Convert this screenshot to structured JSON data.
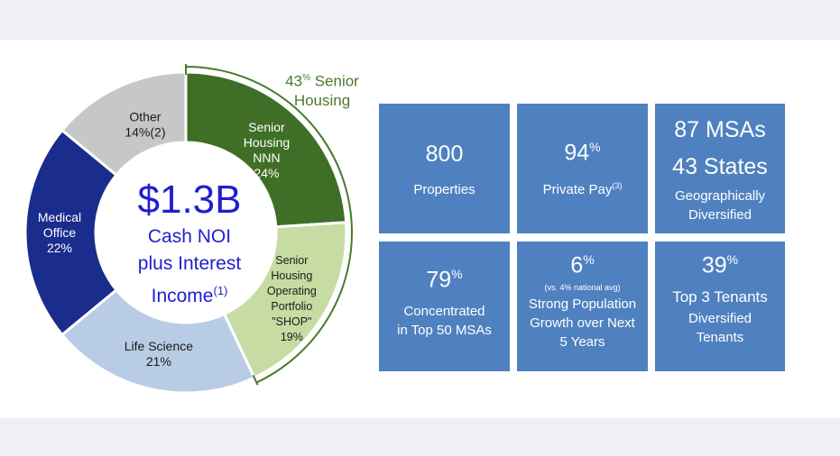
{
  "chart_data": {
    "type": "pie",
    "center": {
      "value": "$1.3B",
      "lines": [
        "Cash NOI",
        "plus Interest"
      ],
      "last_line": "Income",
      "footnote": "(1)"
    },
    "slices": [
      {
        "lines": [
          "Senior",
          "Housing",
          "NNN",
          "24%"
        ],
        "value": 24,
        "color": "#3f6f27",
        "text_color": "#ffffff"
      },
      {
        "lines": [
          "Senior",
          "Housing",
          "Operating",
          "Portfolio",
          "\"SHOP\"",
          "19%"
        ],
        "value": 19,
        "color": "#c6dca3",
        "text_color": "#1a1a1a"
      },
      {
        "lines": [
          "Life Science",
          "21%"
        ],
        "value": 21,
        "color": "#b9cce6",
        "text_color": "#1a1a1a"
      },
      {
        "lines": [
          "Medical",
          "Office",
          "22%"
        ],
        "value": 22,
        "color": "#1a2c8c",
        "text_color": "#ffffff"
      },
      {
        "lines": [
          "Other",
          "14%(2)"
        ],
        "value": 14,
        "color": "#c7c7c7",
        "text_color": "#1a1a1a"
      }
    ],
    "bracket": {
      "pct": "43",
      "sup": "%",
      "line1": "Senior",
      "line2": "Housing"
    }
  },
  "tiles": [
    {
      "big": "800",
      "big_sup": "",
      "lines": [
        "Properties"
      ]
    },
    {
      "big": "94",
      "big_sup": "%",
      "lines": [
        "Private Pay"
      ],
      "ref": "(3)"
    },
    {
      "big": "87 MSAs",
      "big2": "43 States",
      "lines": [
        "Geographically",
        "Diversified"
      ]
    },
    {
      "big": "79",
      "big_sup": "%",
      "lines": [
        "Concentrated",
        "in Top 50 MSAs"
      ]
    },
    {
      "big": "6",
      "big_sup": "%",
      "tiny": "(vs. 4% national avg)",
      "lines": [
        "Strong Population",
        "Growth over Next",
        "5 Years"
      ]
    },
    {
      "big": "39",
      "big_sup": "%",
      "lines": [
        "Top 3 Tenants",
        "Diversified",
        "Tenants"
      ]
    }
  ]
}
